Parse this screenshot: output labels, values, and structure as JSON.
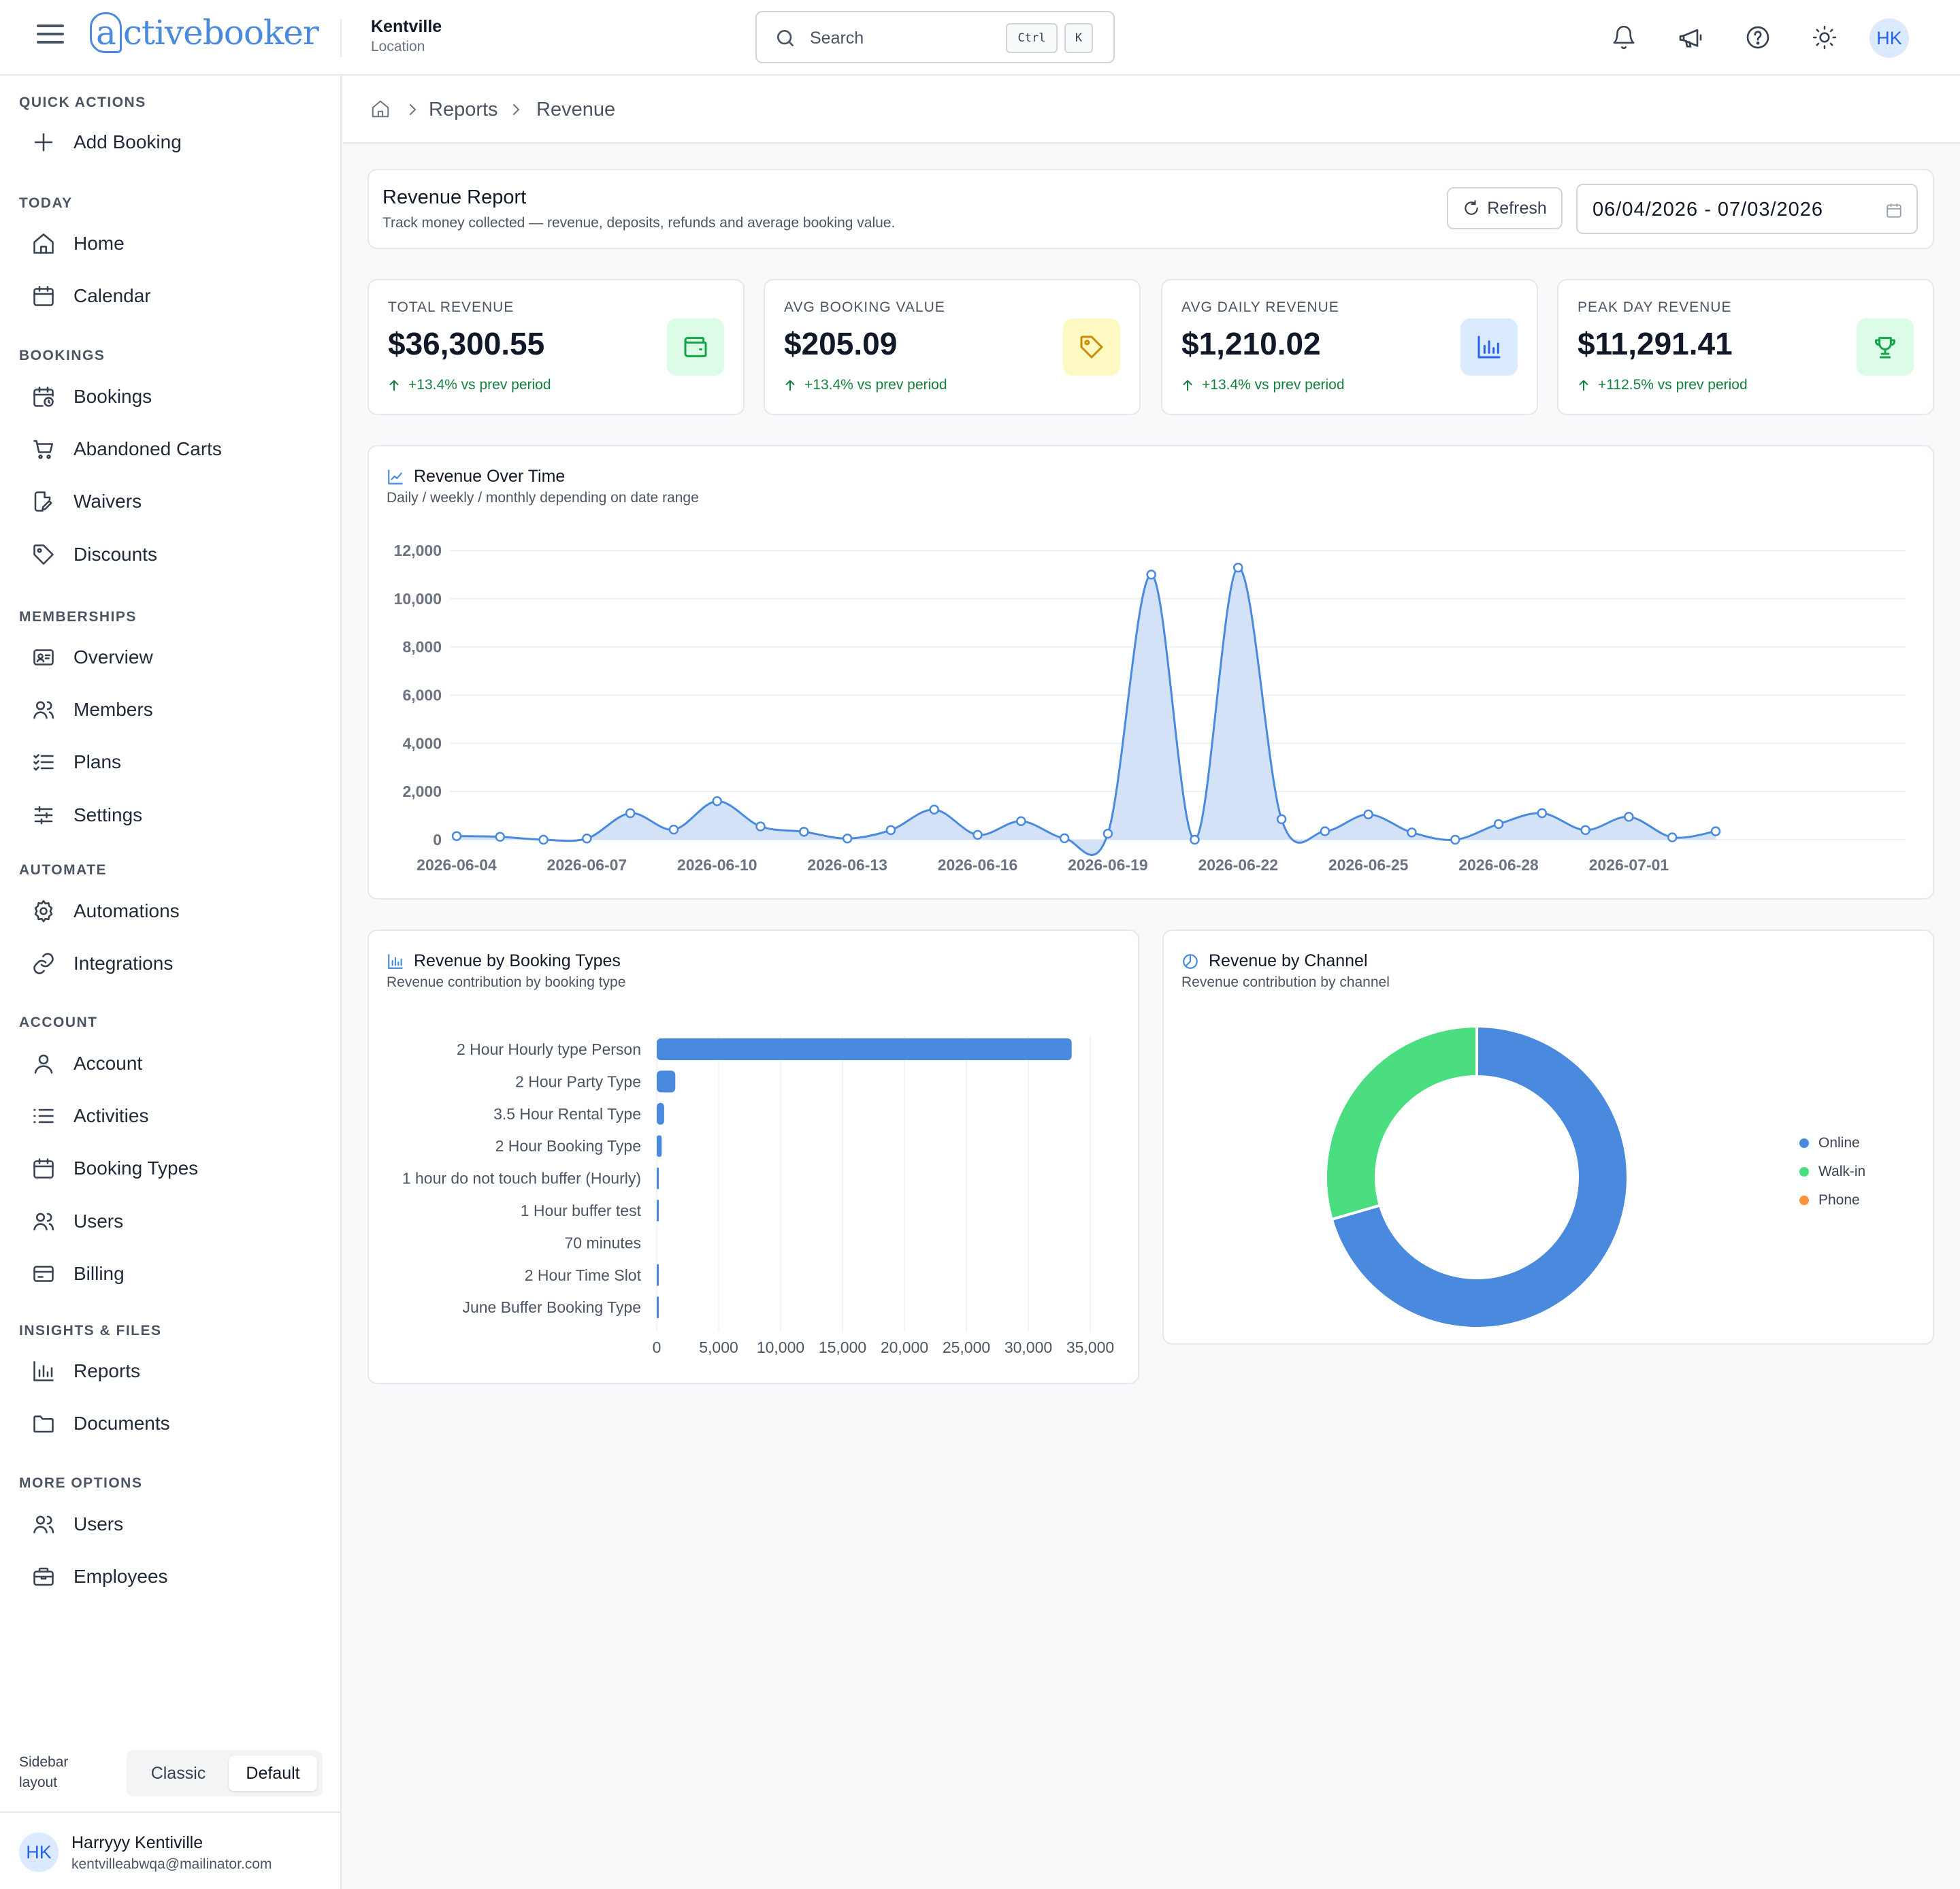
{
  "header": {
    "logo_prefix": "a",
    "logo_rest": "ctivebooker",
    "location_name": "Kentville",
    "location_sub": "Location",
    "search_placeholder": "Search",
    "kbd_ctrl": "Ctrl",
    "kbd_k": "K",
    "avatar": "HK"
  },
  "sidebar": {
    "sections": [
      {
        "title": "QUICK ACTIONS",
        "items": [
          {
            "label": "Add Booking",
            "icon": "plus-icon"
          }
        ]
      },
      {
        "title": "TODAY",
        "items": [
          {
            "label": "Home",
            "icon": "home-icon"
          },
          {
            "label": "Calendar",
            "icon": "calendar-icon"
          }
        ]
      },
      {
        "title": "BOOKINGS",
        "items": [
          {
            "label": "Bookings",
            "icon": "calendar-clock-icon"
          },
          {
            "label": "Abandoned Carts",
            "icon": "cart-icon"
          },
          {
            "label": "Waivers",
            "icon": "file-edit-icon"
          },
          {
            "label": "Discounts",
            "icon": "tag-icon"
          }
        ]
      },
      {
        "title": "MEMBERSHIPS",
        "items": [
          {
            "label": "Overview",
            "icon": "id-card-icon"
          },
          {
            "label": "Members",
            "icon": "users-icon"
          },
          {
            "label": "Plans",
            "icon": "list-check-icon"
          },
          {
            "label": "Settings",
            "icon": "sliders-icon"
          }
        ]
      },
      {
        "title": "AUTOMATE",
        "items": [
          {
            "label": "Automations",
            "icon": "gear-icon"
          },
          {
            "label": "Integrations",
            "icon": "link-icon"
          }
        ]
      },
      {
        "title": "ACCOUNT",
        "items": [
          {
            "label": "Account",
            "icon": "user-icon"
          },
          {
            "label": "Activities",
            "icon": "list-icon"
          },
          {
            "label": "Booking Types",
            "icon": "calendar-icon"
          },
          {
            "label": "Users",
            "icon": "users-icon"
          },
          {
            "label": "Billing",
            "icon": "credit-card-icon"
          }
        ]
      },
      {
        "title": "INSIGHTS & FILES",
        "items": [
          {
            "label": "Reports",
            "icon": "bar-chart-icon"
          },
          {
            "label": "Documents",
            "icon": "folder-icon"
          }
        ]
      },
      {
        "title": "MORE OPTIONS",
        "items": [
          {
            "label": "Users",
            "icon": "users-icon"
          },
          {
            "label": "Employees",
            "icon": "briefcase-icon"
          }
        ]
      }
    ],
    "layout_label": "Sidebar layout",
    "layout_options": [
      "Classic",
      "Default"
    ],
    "layout_selected": "Default",
    "user": {
      "initials": "HK",
      "name": "Harryyy Kentiville",
      "email": "kentvilleabwqa@mailinator.com"
    }
  },
  "breadcrumb": {
    "items": [
      "Reports",
      "Revenue"
    ]
  },
  "report": {
    "title": "Revenue Report",
    "subtitle": "Track money collected — revenue, deposits, refunds and average booking value.",
    "refresh_label": "Refresh",
    "date_range": "06/04/2026 - 07/03/2026"
  },
  "kpis": [
    {
      "label": "TOTAL REVENUE",
      "value": "$36,300.55",
      "trend": "+13.4% vs prev period",
      "icon": "wallet-icon",
      "color": "#16a34a",
      "bg": "#dcfce7"
    },
    {
      "label": "AVG BOOKING VALUE",
      "value": "$205.09",
      "trend": "+13.4% vs prev period",
      "icon": "tag-icon",
      "color": "#ca8a04",
      "bg": "#fef9c3"
    },
    {
      "label": "AVG DAILY REVENUE",
      "value": "$1,210.02",
      "trend": "+13.4% vs prev period",
      "icon": "bar-chart-icon",
      "color": "#2563eb",
      "bg": "#dbeafe"
    },
    {
      "label": "PEAK DAY REVENUE",
      "value": "$11,291.41",
      "trend": "+112.5% vs prev period",
      "icon": "trophy-icon",
      "color": "#16a34a",
      "bg": "#dcfce7"
    }
  ],
  "colors": {
    "accent": "#4a8ade",
    "series_fill": "#d4e2f8",
    "green": "#4ade80",
    "orange": "#fb923c"
  },
  "chart_data": [
    {
      "type": "area",
      "title": "Revenue Over Time",
      "subtitle": "Daily / weekly / monthly depending on date range",
      "x": [
        "2026-06-04",
        "2026-06-05",
        "2026-06-06",
        "2026-06-07",
        "2026-06-08",
        "2026-06-09",
        "2026-06-10",
        "2026-06-11",
        "2026-06-12",
        "2026-06-13",
        "2026-06-14",
        "2026-06-15",
        "2026-06-16",
        "2026-06-17",
        "2026-06-18",
        "2026-06-19",
        "2026-06-20",
        "2026-06-21",
        "2026-06-22",
        "2026-06-23",
        "2026-06-24",
        "2026-06-25",
        "2026-06-26",
        "2026-06-27",
        "2026-06-28",
        "2026-06-29",
        "2026-06-30",
        "2026-07-01",
        "2026-07-02",
        "2026-07-03"
      ],
      "x_tick_labels": [
        "2026-06-04",
        "2026-06-07",
        "2026-06-10",
        "2026-06-13",
        "2026-06-16",
        "2026-06-19",
        "2026-06-22",
        "2026-06-25",
        "2026-06-28",
        "2026-07-01"
      ],
      "values": [
        150,
        120,
        0,
        50,
        1100,
        420,
        1600,
        550,
        330,
        50,
        400,
        1250,
        200,
        770,
        60,
        250,
        11000,
        0,
        11291,
        850,
        350,
        1050,
        300,
        0,
        650,
        1100,
        400,
        950,
        100,
        350
      ],
      "ylim": [
        0,
        12000
      ],
      "y_ticks": [
        0,
        2000,
        4000,
        6000,
        8000,
        10000,
        12000
      ],
      "grid": true
    },
    {
      "type": "bar",
      "orientation": "horizontal",
      "title": "Revenue by Booking Types",
      "subtitle": "Revenue contribution by booking type",
      "categories": [
        "2 Hour Hourly type Person",
        "2 Hour Party Type",
        "3.5 Hour Rental Type",
        "2 Hour Booking Type",
        "1 hour do not touch buffer (Hourly)",
        "1 Hour buffer test",
        "70 minutes",
        "2 Hour Time Slot",
        "June Buffer Booking Type"
      ],
      "values": [
        33500,
        1500,
        600,
        400,
        150,
        100,
        0,
        100,
        100
      ],
      "xlim": [
        0,
        35000
      ],
      "x_ticks": [
        0,
        5000,
        10000,
        15000,
        20000,
        25000,
        30000,
        35000
      ]
    },
    {
      "type": "pie",
      "donut": true,
      "title": "Revenue by Channel",
      "subtitle": "Revenue contribution by channel",
      "labels": [
        "Online",
        "Walk-in",
        "Phone"
      ],
      "values": [
        70.5,
        29.5,
        0
      ],
      "colors": [
        "#4a8ade",
        "#4ade80",
        "#fb923c"
      ],
      "legend_position": "right"
    }
  ]
}
